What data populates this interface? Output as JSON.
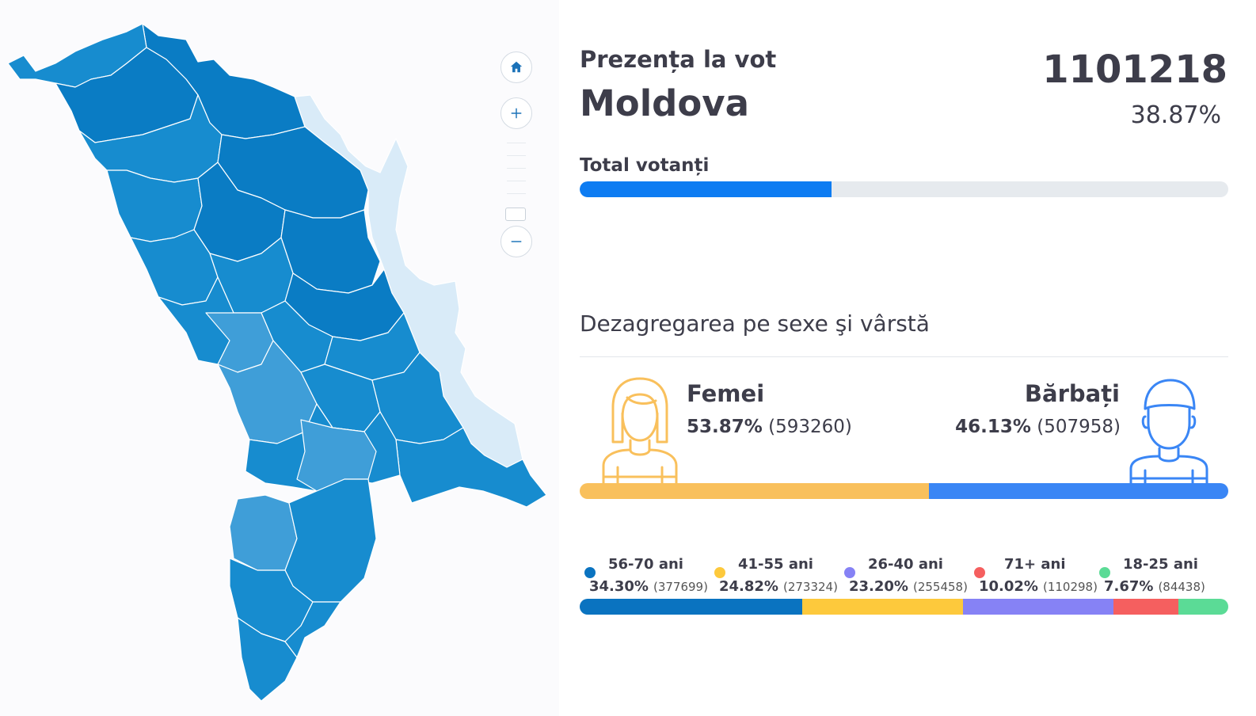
{
  "turnout": {
    "title": "Prezența la vot",
    "region": "Moldova",
    "count": "1101218",
    "percent_label": "38.87%",
    "percent_value": 38.87
  },
  "total_voters": {
    "label": "Total votanți",
    "fill_percent": 38.87
  },
  "breakdown": {
    "title": "Dezagregarea pe sexe şi vârstă",
    "female": {
      "label": "Femei",
      "percent": "53.87%",
      "count": "(593260)",
      "value": 53.87,
      "color": "#f9c05c"
    },
    "male": {
      "label": "Bărbați",
      "percent": "46.13%",
      "count": "(507958)",
      "value": 46.13,
      "color": "#3a86f5"
    }
  },
  "age_groups": [
    {
      "label": "56-70 ani",
      "percent": "34.30%",
      "count": "(377699)",
      "value": 34.3,
      "color": "#0a73c0"
    },
    {
      "label": "41-55 ani",
      "percent": "24.82%",
      "count": "(273324)",
      "value": 24.82,
      "color": "#fdc93c"
    },
    {
      "label": "26-40 ani",
      "percent": "23.20%",
      "count": "(255458)",
      "value": 23.2,
      "color": "#8682f5"
    },
    {
      "label": "71+ ani",
      "percent": "10.02%",
      "count": "(110298)",
      "value": 10.02,
      "color": "#f55f5f"
    },
    {
      "label": "18-25 ani",
      "percent": "7.67%",
      "count": "(84438)",
      "value": 7.67,
      "color": "#5bdb96"
    }
  ],
  "map": {
    "controls": [
      "home-icon",
      "plus-icon",
      "minus-icon"
    ],
    "colors": {
      "dark": "#0a7cc4",
      "mid": "#178ccf",
      "light": "#3f9ed8",
      "transnistria": "#d9ebf8"
    }
  }
}
